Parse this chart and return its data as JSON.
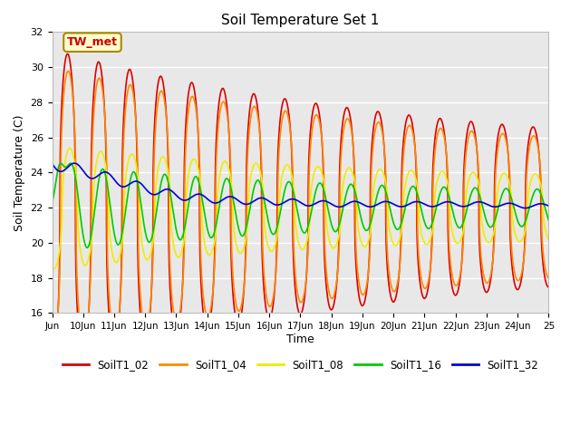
{
  "title": "Soil Temperature Set 1",
  "xlabel": "Time",
  "ylabel": "Soil Temperature (C)",
  "ylim": [
    16,
    32
  ],
  "xlim": [
    -0.5,
    15.5
  ],
  "bg_color": "#e8e8e8",
  "annotation_text": "TW_met",
  "annotation_bg": "#ffffcc",
  "annotation_border": "#aa8800",
  "xtick_labels": [
    "Jun",
    "10Jun",
    "11Jun",
    "12Jun",
    "13Jun",
    "14Jun",
    "15Jun",
    "16Jun",
    "17Jun",
    "18Jun",
    "19Jun",
    "20Jun",
    "21Jun",
    "22Jun",
    "23Jun",
    "24Jun",
    "25"
  ],
  "xtick_positions": [
    -0.5,
    0.5,
    1.5,
    2.5,
    3.5,
    4.5,
    5.5,
    6.5,
    7.5,
    8.5,
    9.5,
    10.5,
    11.5,
    12.5,
    13.5,
    14.5,
    15.5
  ],
  "series": {
    "SoilT1_02": {
      "color": "#dd0000",
      "linewidth": 1.2
    },
    "SoilT1_04": {
      "color": "#ff8800",
      "linewidth": 1.2
    },
    "SoilT1_08": {
      "color": "#eeee00",
      "linewidth": 1.2
    },
    "SoilT1_16": {
      "color": "#00cc00",
      "linewidth": 1.2
    },
    "SoilT1_32": {
      "color": "#0000dd",
      "linewidth": 1.2
    }
  }
}
